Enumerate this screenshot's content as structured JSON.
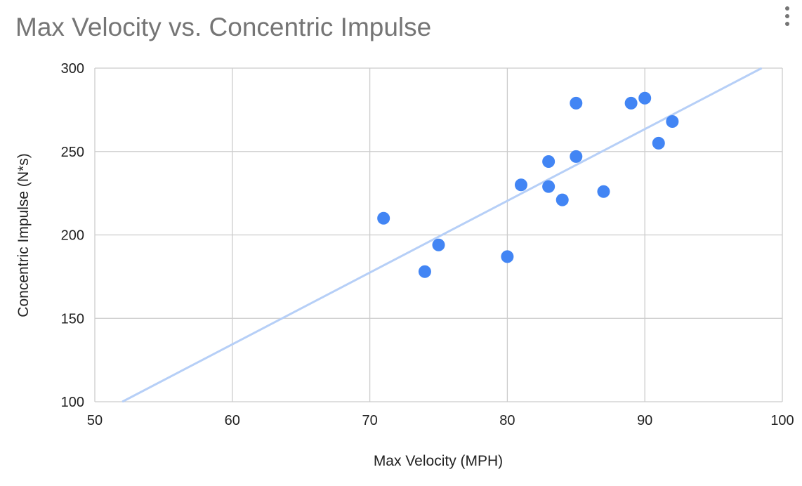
{
  "menu": {
    "icon": "more-vert-icon"
  },
  "chart_data": {
    "type": "scatter",
    "title": "Max Velocity vs. Concentric Impulse",
    "xlabel": "Max Velocity (MPH)",
    "ylabel": "Concentric Impulse (N*s)",
    "xlim": [
      50,
      100
    ],
    "ylim": [
      100,
      300
    ],
    "xticks": [
      50,
      60,
      70,
      80,
      90,
      100
    ],
    "yticks": [
      100,
      150,
      200,
      250,
      300
    ],
    "grid": true,
    "legend": "none",
    "point_color": "#4285f4",
    "trendline_color": "#b6cff7",
    "points": [
      {
        "x": 71,
        "y": 210
      },
      {
        "x": 74,
        "y": 178
      },
      {
        "x": 75,
        "y": 194
      },
      {
        "x": 80,
        "y": 187
      },
      {
        "x": 81,
        "y": 230
      },
      {
        "x": 83,
        "y": 244
      },
      {
        "x": 83,
        "y": 229
      },
      {
        "x": 84,
        "y": 221
      },
      {
        "x": 85,
        "y": 279
      },
      {
        "x": 85,
        "y": 247
      },
      {
        "x": 87,
        "y": 226
      },
      {
        "x": 89,
        "y": 279
      },
      {
        "x": 90,
        "y": 282
      },
      {
        "x": 91,
        "y": 255
      },
      {
        "x": 92,
        "y": 268
      }
    ],
    "trendline": {
      "type": "linear",
      "from": {
        "x": 52,
        "y": 100
      },
      "to": {
        "x": 98.5,
        "y": 300
      }
    }
  }
}
